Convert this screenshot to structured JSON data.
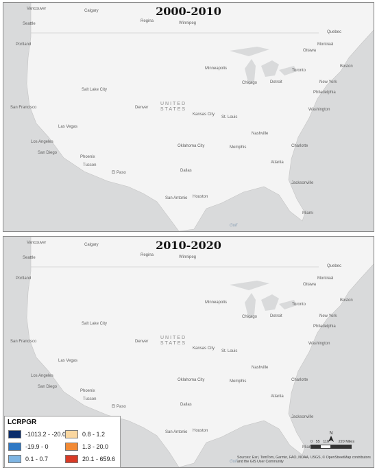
{
  "panels": [
    {
      "title": "2000-2010",
      "labels": [
        "Vancouver",
        "Calgary",
        "Regina",
        "Winnipeg",
        "Quebec",
        "Ottawa",
        "Montreal",
        "Toronto",
        "Boston",
        "New York",
        "Philadelphia",
        "Chicago",
        "Detroit",
        "Denver",
        "Salt Lake City",
        "San Francisco",
        "Los Angeles",
        "San Diego",
        "Las Vegas",
        "Phoenix",
        "Tucson",
        "El Paso",
        "Dallas",
        "Houston",
        "San Antonio",
        "Atlanta",
        "Jacksonville",
        "Miami",
        "Seattle",
        "Portland",
        "Oklahoma City",
        "Memphis",
        "Nashville",
        "Charlotte",
        "St. Louis",
        "Kansas City",
        "Minneapolis",
        "Washington"
      ],
      "country_label": "UNITED STATES",
      "water_label": "Gulf"
    },
    {
      "title": "2010-2020",
      "labels": [
        "Vancouver",
        "Calgary",
        "Regina",
        "Winnipeg",
        "Quebec",
        "Ottawa",
        "Montreal",
        "Toronto",
        "Boston",
        "New York",
        "Philadelphia",
        "Chicago",
        "Detroit",
        "Denver",
        "Salt Lake City",
        "San Francisco",
        "Los Angeles",
        "San Diego",
        "Las Vegas",
        "Phoenix",
        "Tucson",
        "El Paso",
        "Dallas",
        "Houston",
        "San Antonio",
        "Atlanta",
        "Jacksonville",
        "Miami",
        "Seattle",
        "Portland",
        "Oklahoma City",
        "Memphis",
        "Nashville",
        "Charlotte",
        "St. Louis",
        "Kansas City",
        "Minneapolis",
        "Washington"
      ],
      "country_label": "UNITED STATES",
      "water_label": "Gulf"
    }
  ],
  "legend": {
    "title": "LCRPGR",
    "classes": [
      {
        "label": "-1013.2 - -20.0",
        "color": "#0b2d6b"
      },
      {
        "label": "-19.9 - 0",
        "color": "#2f78c4"
      },
      {
        "label": "0.1 - 0.7",
        "color": "#7eb5e3"
      },
      {
        "label": "0.8 - 1.2",
        "color": "#fad7a0"
      },
      {
        "label": "1.3 - 20.0",
        "color": "#f28a35"
      },
      {
        "label": "20.1 - 659.6",
        "color": "#d93a26"
      }
    ]
  },
  "north_arrow": "N",
  "scale_bar": {
    "labels": [
      "0",
      "55",
      "110",
      "220 Miles"
    ]
  },
  "sources": "Sources: Esri, TomTom, Garmin, FAO, NOAA, USGS, © OpenStreetMap contributors and the GIS User Community",
  "colors": {
    "water": "#d9dadb",
    "land": "#f4f4f4",
    "outline": "#7a7a7a"
  }
}
